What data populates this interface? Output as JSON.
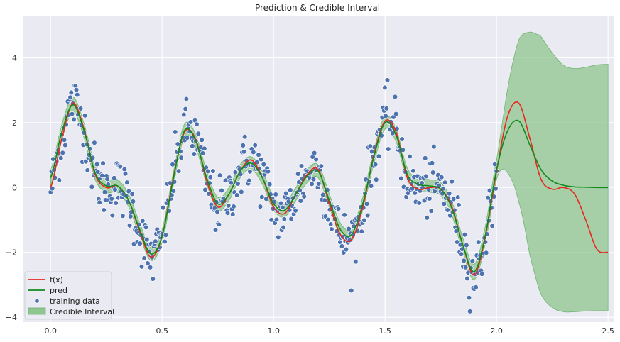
{
  "chart_data": {
    "type": "line",
    "title": "Prediction & Credible Interval",
    "xlabel": "",
    "ylabel": "",
    "xlim": [
      -0.125,
      2.525
    ],
    "ylim": [
      -4.15,
      5.3
    ],
    "xticks": [
      0.0,
      0.5,
      1.0,
      1.5,
      2.0,
      2.5
    ],
    "xtick_labels": [
      "0.0",
      "0.5",
      "1.0",
      "1.5",
      "2.0",
      "2.5"
    ],
    "yticks": [
      -4,
      -2,
      0,
      2,
      4
    ],
    "ytick_labels": [
      "−4",
      "−2",
      "0",
      "2",
      "4"
    ],
    "grid": true,
    "legend_position": "lower-left",
    "colors": {
      "background": "#eaeaf2",
      "grid": "#ffffff",
      "fx": "#e8271f",
      "pred": "#12891a",
      "points": "#4c72b0",
      "interval_fill": "#8fc58f",
      "interval_edge": "#6fb56f"
    },
    "series": [
      {
        "name": "f(x)",
        "kind": "line",
        "x": [
          0.0,
          0.05,
          0.1,
          0.15,
          0.2,
          0.25,
          0.3,
          0.35,
          0.4,
          0.45,
          0.5,
          0.55,
          0.6,
          0.65,
          0.7,
          0.75,
          0.8,
          0.85,
          0.9,
          0.95,
          1.0,
          1.05,
          1.1,
          1.15,
          1.2,
          1.25,
          1.3,
          1.35,
          1.4,
          1.45,
          1.5,
          1.55,
          1.6,
          1.65,
          1.7,
          1.75,
          1.8,
          1.85,
          1.9,
          1.95,
          2.0,
          2.05,
          2.1,
          2.15,
          2.2,
          2.25,
          2.3,
          2.35,
          2.4,
          2.45,
          2.5
        ],
        "y": [
          0.0,
          1.5,
          2.6,
          1.8,
          0.4,
          0.0,
          0.05,
          -0.4,
          -1.35,
          -2.15,
          -1.5,
          0.3,
          1.7,
          1.5,
          0.2,
          -0.6,
          -0.2,
          0.5,
          0.85,
          0.3,
          -0.6,
          -0.8,
          -0.2,
          0.4,
          0.55,
          -0.5,
          -1.45,
          -1.6,
          -0.6,
          1.0,
          2.05,
          1.7,
          0.3,
          -0.05,
          0.0,
          -0.05,
          -0.6,
          -1.8,
          -2.7,
          -1.5,
          0.5,
          2.2,
          2.6,
          1.5,
          0.25,
          -0.05,
          0.0,
          -0.2,
          -1.0,
          -1.9,
          -2.0
        ]
      },
      {
        "name": "pred",
        "kind": "line",
        "x": [
          0.0,
          0.05,
          0.1,
          0.15,
          0.2,
          0.25,
          0.3,
          0.35,
          0.4,
          0.45,
          0.5,
          0.55,
          0.6,
          0.65,
          0.7,
          0.75,
          0.8,
          0.85,
          0.9,
          0.95,
          1.0,
          1.05,
          1.1,
          1.15,
          1.2,
          1.25,
          1.3,
          1.35,
          1.4,
          1.45,
          1.5,
          1.55,
          1.6,
          1.65,
          1.7,
          1.75,
          1.8,
          1.85,
          1.9,
          1.95,
          2.0,
          2.05,
          2.1,
          2.15,
          2.2,
          2.25,
          2.3,
          2.35,
          2.4,
          2.45,
          2.5
        ],
        "y": [
          0.3,
          1.7,
          2.55,
          1.75,
          0.45,
          0.05,
          0.05,
          -0.4,
          -1.3,
          -2.05,
          -1.5,
          0.25,
          1.75,
          1.45,
          0.3,
          -0.5,
          -0.2,
          0.5,
          0.75,
          0.3,
          -0.5,
          -0.7,
          -0.2,
          0.35,
          0.5,
          -0.4,
          -1.3,
          -1.45,
          -0.5,
          0.95,
          2.0,
          1.6,
          0.4,
          0.1,
          0.05,
          -0.05,
          -0.65,
          -1.8,
          -2.6,
          -1.45,
          0.55,
          1.75,
          2.05,
          1.3,
          0.55,
          0.2,
          0.07,
          0.02,
          0.01,
          0.0,
          0.0
        ]
      },
      {
        "name": "Credible Interval",
        "kind": "band",
        "x": [
          0.0,
          0.25,
          0.5,
          0.75,
          1.0,
          1.25,
          1.5,
          1.75,
          2.0,
          2.02,
          2.05,
          2.08,
          2.1,
          2.13,
          2.15,
          2.18,
          2.2,
          2.25,
          2.3,
          2.35,
          2.4,
          2.45,
          2.5
        ],
        "lower_offset": [
          0.25,
          0.2,
          0.2,
          0.2,
          0.2,
          0.2,
          0.2,
          0.2,
          0.3,
          0.6,
          1.3,
          2.0,
          2.5,
          3.0,
          3.4,
          3.7,
          3.85,
          3.9,
          3.9,
          3.85,
          3.82,
          3.8,
          3.8
        ],
        "upper_offset": [
          0.25,
          0.2,
          0.2,
          0.2,
          0.2,
          0.2,
          0.2,
          0.2,
          0.3,
          0.6,
          1.3,
          2.0,
          2.5,
          3.1,
          3.5,
          3.9,
          4.1,
          3.95,
          3.7,
          3.65,
          3.7,
          3.78,
          3.8
        ]
      },
      {
        "name": "training data",
        "kind": "scatter",
        "x_start": 0.0,
        "x_end": 2.0,
        "n": 520,
        "noise": 0.45
      }
    ],
    "legend": [
      "f(x)",
      "pred",
      "training data",
      "Credible Interval"
    ]
  }
}
